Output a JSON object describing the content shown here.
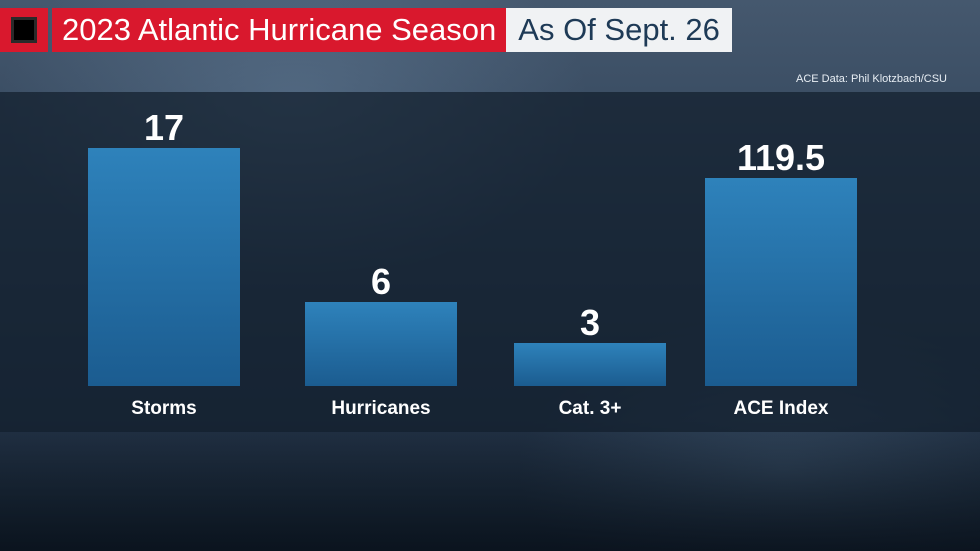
{
  "header": {
    "title": "2023 Atlantic Hurricane Season",
    "subtitle": "As Of Sept. 26",
    "source": "ACE Data: Phil Klotzbach/CSU"
  },
  "colors": {
    "accent_red": "#d9182d",
    "bar_top": "#2d7fb8",
    "bar_bottom": "#1a5a8e"
  },
  "chart_data": {
    "type": "bar",
    "title": "2023 Atlantic Hurricane Season",
    "subtitle": "As Of Sept. 26",
    "categories": [
      "Storms",
      "Hurricanes",
      "Cat. 3+",
      "ACE Index"
    ],
    "values": [
      17,
      6,
      3,
      119.5
    ],
    "value_labels": [
      "17",
      "6",
      "3",
      "119.5"
    ],
    "xlabel": "",
    "ylabel": "",
    "grid": false,
    "legend": "none",
    "note": ""
  }
}
